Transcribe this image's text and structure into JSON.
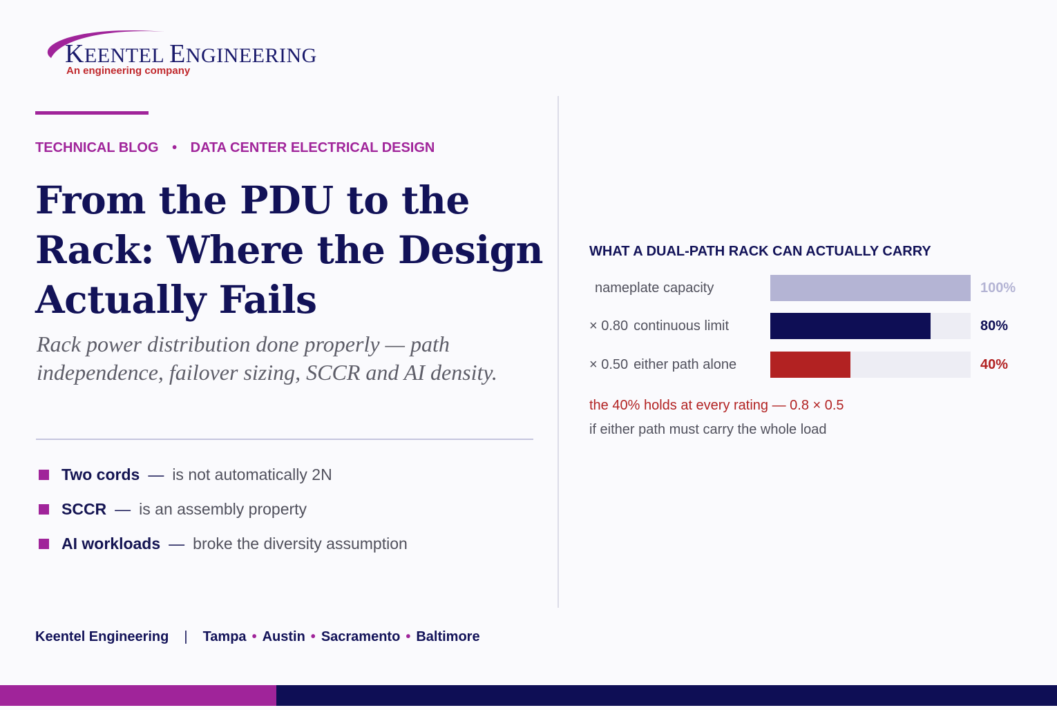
{
  "brand": {
    "name_parts": [
      "K",
      "EENTEL ",
      "E",
      "NGINEERING"
    ],
    "tagline": "An engineering company",
    "colors": {
      "purple": "#a0249a",
      "navy": "#121258",
      "red": "#b22222",
      "lavender": "#b4b4d4"
    }
  },
  "article": {
    "category": "TECHNICAL BLOG",
    "topic": "DATA CENTER ELECTRICAL DESIGN",
    "separator": "•",
    "headline": "From the PDU to the Rack: Where the Design Actually Fails",
    "subtitle": "Rack power distribution done properly — path independence, failover sizing, SCCR and AI density.",
    "points": [
      {
        "term": "Two cords",
        "dash": "—",
        "desc": "is not automatically 2N"
      },
      {
        "term": "SCCR",
        "dash": "—",
        "desc": "is an assembly property"
      },
      {
        "term": "AI workloads",
        "dash": "—",
        "desc": "broke the diversity assumption"
      }
    ]
  },
  "chart_data": {
    "type": "bar",
    "orientation": "horizontal",
    "title": "WHAT A DUAL-PATH RACK CAN ACTUALLY CARRY",
    "xlim": [
      0,
      100
    ],
    "unit": "%",
    "grid": false,
    "rows": [
      {
        "multiplier": "",
        "label": "nameplate capacity",
        "value": 100,
        "value_label": "100%",
        "color": "#b4b4d4",
        "label_color": "#b4b4d4"
      },
      {
        "multiplier": "× 0.80",
        "label": "continuous limit",
        "value": 80,
        "value_label": "80%",
        "color": "#0e0e55",
        "label_color": "#0e0e55"
      },
      {
        "multiplier": "× 0.50",
        "label": "either path alone",
        "value": 40,
        "value_label": "40%",
        "color": "#b22222",
        "label_color": "#b22222"
      }
    ],
    "annotations": [
      "the 40% holds at every rating — 0.8 × 0.5",
      "if either path must carry the whole load"
    ]
  },
  "footer": {
    "company": "Keentel Engineering",
    "separator": "|",
    "city_separator": "•",
    "cities": [
      "Tampa",
      "Austin",
      "Sacramento",
      "Baltimore"
    ]
  }
}
